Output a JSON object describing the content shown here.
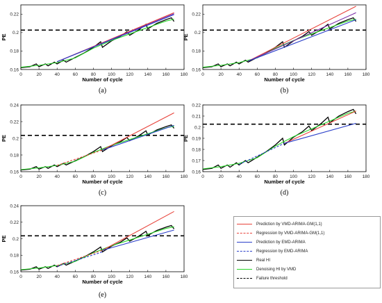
{
  "colors": {
    "vmd_pred": "#e8423a",
    "vmd_reg": "#e8423a",
    "emd_pred": "#2a3fc9",
    "emd_reg": "#2a3fc9",
    "real": "#000000",
    "denoise": "#2bd62b",
    "threshold": "#000000",
    "purple": "#7a2aa8"
  },
  "legend": {
    "entries": [
      {
        "label": "Prediction by VMD-ARIMA-GM(1,1)",
        "color": "#e8423a",
        "dash": "solid"
      },
      {
        "label": "Regression by VMD-ARIMA-GM(1,1)",
        "color": "#e8423a",
        "dash": "dashed"
      },
      {
        "label": "Prediction by EMD-ARIMA",
        "color": "#2a3fc9",
        "dash": "solid"
      },
      {
        "label": "Regression by EMD-ARIMA",
        "color": "#2a3fc9",
        "dash": "dashed"
      },
      {
        "label": "Real HI",
        "color": "#000000",
        "dash": "solid"
      },
      {
        "label": "Denoising HI by VMD",
        "color": "#2bd62b",
        "dash": "solid"
      },
      {
        "label": "Failure threshold",
        "color": "#000000",
        "dash": "dashed"
      }
    ]
  },
  "chart_data": [
    {
      "panel_label": "(a)",
      "type": "line",
      "xlabel": "Number of cycle",
      "ylabel": "PE",
      "xlim": [
        0,
        180
      ],
      "ylim": [
        0.16,
        0.23
      ],
      "xticks": [
        "0",
        "20",
        "40",
        "60",
        "80",
        "100",
        "120",
        "140",
        "160",
        "180"
      ],
      "yticks": [
        "0.16",
        "0.18",
        "0.2",
        "0.22"
      ],
      "threshold": 0.2027,
      "series": [
        {
          "color_key": "real",
          "x": [
            0,
            10,
            17,
            20,
            27,
            30,
            37,
            40,
            47,
            50,
            60,
            70,
            80,
            88,
            90,
            100,
            110,
            117,
            120,
            130,
            138,
            140,
            150,
            160,
            166,
            169
          ],
          "y": [
            0.162,
            0.163,
            0.166,
            0.163,
            0.166,
            0.164,
            0.168,
            0.166,
            0.17,
            0.168,
            0.173,
            0.178,
            0.184,
            0.19,
            0.184,
            0.191,
            0.196,
            0.201,
            0.197,
            0.203,
            0.209,
            0.204,
            0.21,
            0.214,
            0.216,
            0.212
          ]
        },
        {
          "color_key": "denoise",
          "x": [
            0,
            20,
            40,
            60,
            80,
            100,
            120,
            140,
            160,
            169
          ],
          "y": [
            0.1625,
            0.1645,
            0.1675,
            0.1725,
            0.183,
            0.1915,
            0.1985,
            0.2055,
            0.2125,
            0.2145
          ]
        },
        {
          "color_key": "vmd_pred",
          "x": [
            40,
            169
          ],
          "y": [
            0.1685,
            0.2215
          ]
        },
        {
          "color_key": "purple",
          "x": [
            40,
            169
          ],
          "y": [
            0.1685,
            0.2205
          ]
        },
        {
          "color_key": "emd_pred",
          "x": [
            40,
            169
          ],
          "y": [
            0.1685,
            0.2195
          ]
        }
      ]
    },
    {
      "panel_label": "(b)",
      "type": "line",
      "xlabel": "Number of cycle",
      "ylabel": "PE",
      "xlim": [
        0,
        180
      ],
      "ylim": [
        0.16,
        0.23
      ],
      "xticks": [
        "0",
        "20",
        "40",
        "60",
        "80",
        "100",
        "120",
        "140",
        "160",
        "180"
      ],
      "yticks": [
        "0.16",
        "0.18",
        "0.2",
        "0.22"
      ],
      "threshold": 0.2027,
      "series": [
        {
          "color_key": "real",
          "x": [
            0,
            10,
            17,
            20,
            27,
            30,
            37,
            40,
            47,
            50,
            60,
            70,
            80,
            88,
            90,
            100,
            110,
            117,
            120,
            130,
            138,
            140,
            150,
            160,
            166,
            169
          ],
          "y": [
            0.162,
            0.163,
            0.166,
            0.163,
            0.166,
            0.164,
            0.168,
            0.166,
            0.17,
            0.168,
            0.173,
            0.178,
            0.184,
            0.19,
            0.184,
            0.191,
            0.196,
            0.201,
            0.197,
            0.203,
            0.209,
            0.204,
            0.21,
            0.214,
            0.216,
            0.212
          ]
        },
        {
          "color_key": "denoise",
          "x": [
            0,
            20,
            40,
            60,
            80,
            100,
            120,
            140,
            160,
            169
          ],
          "y": [
            0.1625,
            0.1645,
            0.1675,
            0.1725,
            0.183,
            0.1915,
            0.1985,
            0.2055,
            0.2125,
            0.2145
          ]
        },
        {
          "color_key": "vmd_pred",
          "x": [
            50,
            169
          ],
          "y": [
            0.169,
            0.2285
          ]
        },
        {
          "color_key": "purple",
          "x": [
            50,
            169
          ],
          "y": [
            0.169,
            0.2215
          ]
        },
        {
          "color_key": "emd_pred",
          "x": [
            50,
            169
          ],
          "y": [
            0.169,
            0.214
          ]
        }
      ]
    },
    {
      "panel_label": "(c)",
      "type": "line",
      "xlabel": "Number of cycle",
      "ylabel": "PE",
      "xlim": [
        0,
        180
      ],
      "ylim": [
        0.16,
        0.24
      ],
      "xticks": [
        "0",
        "20",
        "40",
        "60",
        "80",
        "100",
        "120",
        "140",
        "160",
        "180"
      ],
      "yticks": [
        "0.16",
        "0.18",
        "0.2",
        "0.22",
        "0.24"
      ],
      "threshold": 0.2035,
      "series": [
        {
          "color_key": "real",
          "x": [
            0,
            10,
            17,
            20,
            27,
            30,
            37,
            40,
            47,
            50,
            60,
            70,
            80,
            88,
            90,
            100,
            110,
            117,
            120,
            130,
            138,
            140,
            150,
            160,
            166,
            169
          ],
          "y": [
            0.162,
            0.163,
            0.166,
            0.163,
            0.166,
            0.164,
            0.168,
            0.166,
            0.17,
            0.168,
            0.173,
            0.178,
            0.184,
            0.19,
            0.184,
            0.191,
            0.196,
            0.201,
            0.197,
            0.203,
            0.209,
            0.204,
            0.21,
            0.214,
            0.216,
            0.212
          ]
        },
        {
          "color_key": "denoise",
          "x": [
            0,
            20,
            40,
            60,
            80,
            100,
            120,
            140,
            160,
            169
          ],
          "y": [
            0.1625,
            0.1645,
            0.1675,
            0.1725,
            0.183,
            0.1915,
            0.1985,
            0.2055,
            0.2125,
            0.2145
          ]
        },
        {
          "color_key": "vmd_reg",
          "dash": true,
          "x": [
            40,
            90
          ],
          "y": [
            0.1675,
            0.186
          ]
        },
        {
          "color_key": "vmd_pred",
          "x": [
            90,
            169
          ],
          "y": [
            0.186,
            0.2305
          ]
        },
        {
          "color_key": "emd_pred",
          "x": [
            90,
            169
          ],
          "y": [
            0.186,
            0.2155
          ]
        }
      ]
    },
    {
      "panel_label": "(d)",
      "type": "line",
      "xlabel": "Number of cycle",
      "ylabel": "PE",
      "xlim": [
        0,
        180
      ],
      "ylim": [
        0.16,
        0.22
      ],
      "xticks": [
        "0",
        "20",
        "40",
        "60",
        "80",
        "100",
        "120",
        "140",
        "160",
        "180"
      ],
      "yticks": [
        "0.16",
        "0.17",
        "0.18",
        "0.19",
        "0.2",
        "0.21",
        "0.22"
      ],
      "threshold": 0.2027,
      "series": [
        {
          "color_key": "real",
          "x": [
            0,
            10,
            17,
            20,
            27,
            30,
            37,
            40,
            47,
            50,
            60,
            70,
            80,
            88,
            90,
            100,
            110,
            117,
            120,
            130,
            138,
            140,
            150,
            160,
            166,
            169
          ],
          "y": [
            0.162,
            0.163,
            0.166,
            0.163,
            0.166,
            0.164,
            0.168,
            0.166,
            0.17,
            0.168,
            0.173,
            0.178,
            0.184,
            0.19,
            0.184,
            0.191,
            0.196,
            0.201,
            0.197,
            0.203,
            0.209,
            0.204,
            0.21,
            0.214,
            0.216,
            0.212
          ]
        },
        {
          "color_key": "denoise",
          "x": [
            0,
            20,
            40,
            60,
            80,
            100,
            120,
            140,
            160,
            169
          ],
          "y": [
            0.1625,
            0.1645,
            0.1675,
            0.1725,
            0.183,
            0.1915,
            0.1985,
            0.2055,
            0.2125,
            0.2145
          ]
        },
        {
          "color_key": "emd_reg",
          "dash": true,
          "x": [
            40,
            90
          ],
          "y": [
            0.1665,
            0.1855
          ]
        },
        {
          "color_key": "vmd_pred",
          "x": [
            90,
            169
          ],
          "y": [
            0.1855,
            0.2145
          ]
        },
        {
          "color_key": "emd_pred",
          "x": [
            90,
            169
          ],
          "y": [
            0.1855,
            0.2035
          ]
        }
      ]
    },
    {
      "panel_label": "(e)",
      "type": "line",
      "xlabel": "Number of cycle",
      "ylabel": "PE",
      "xlim": [
        0,
        180
      ],
      "ylim": [
        0.16,
        0.24
      ],
      "xticks": [
        "0",
        "20",
        "40",
        "60",
        "80",
        "100",
        "120",
        "140",
        "160",
        "180"
      ],
      "yticks": [
        "0.16",
        "0.18",
        "0.2",
        "0.22",
        "0.24"
      ],
      "threshold": 0.2035,
      "series": [
        {
          "color_key": "real",
          "x": [
            0,
            10,
            17,
            20,
            27,
            30,
            37,
            40,
            47,
            50,
            60,
            70,
            80,
            88,
            90,
            100,
            110,
            117,
            120,
            130,
            138,
            140,
            150,
            160,
            166,
            169
          ],
          "y": [
            0.162,
            0.163,
            0.166,
            0.163,
            0.166,
            0.164,
            0.168,
            0.166,
            0.17,
            0.168,
            0.173,
            0.178,
            0.184,
            0.19,
            0.184,
            0.191,
            0.196,
            0.201,
            0.197,
            0.203,
            0.209,
            0.204,
            0.21,
            0.214,
            0.216,
            0.212
          ]
        },
        {
          "color_key": "denoise",
          "x": [
            0,
            20,
            40,
            60,
            80,
            100,
            120,
            140,
            160,
            169
          ],
          "y": [
            0.1625,
            0.1645,
            0.1675,
            0.1725,
            0.183,
            0.1915,
            0.1985,
            0.2055,
            0.2125,
            0.2145
          ]
        },
        {
          "color_key": "vmd_reg",
          "dash": true,
          "x": [
            40,
            90
          ],
          "y": [
            0.1675,
            0.186
          ]
        },
        {
          "color_key": "emd_reg",
          "dash": true,
          "x": [
            40,
            90
          ],
          "y": [
            0.1665,
            0.184
          ]
        },
        {
          "color_key": "vmd_pred",
          "x": [
            90,
            169
          ],
          "y": [
            0.186,
            0.233
          ]
        },
        {
          "color_key": "emd_pred",
          "x": [
            90,
            169
          ],
          "y": [
            0.186,
            0.2105
          ]
        }
      ]
    }
  ]
}
